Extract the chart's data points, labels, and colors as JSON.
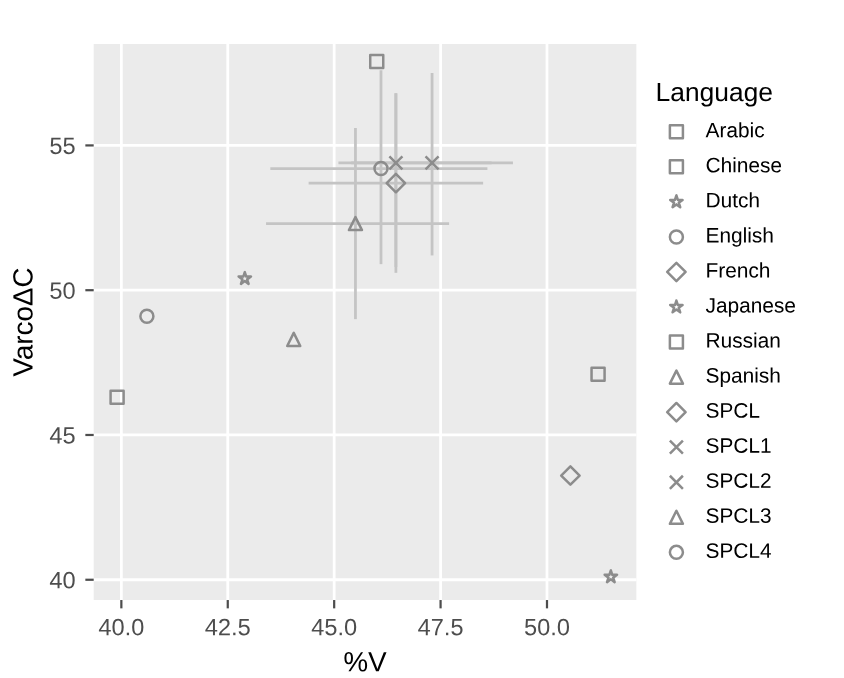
{
  "chart_data": {
    "type": "scatter",
    "xlabel": "%V",
    "ylabel": "VarcoΔC",
    "legend_title": "Language",
    "legend": "right",
    "grid": true,
    "xlim": [
      39.35,
      52.1
    ],
    "ylim": [
      39.3,
      58.5
    ],
    "xticks": [
      {
        "value": 40,
        "label": "40.0"
      },
      {
        "value": 42.5,
        "label": "42.5"
      },
      {
        "value": 45,
        "label": "45.0"
      },
      {
        "value": 47.5,
        "label": "47.5"
      },
      {
        "value": 50,
        "label": "50.0"
      }
    ],
    "yticks": [
      40,
      45,
      50,
      55
    ],
    "series": [
      {
        "name": "Arabic",
        "color": "#8c8c8c",
        "marker": "square",
        "x": [
          46.0
        ],
        "values": [
          57.9
        ]
      },
      {
        "name": "Chinese",
        "color": "#8c8c8c",
        "marker": "square",
        "x": [
          51.2
        ],
        "values": [
          47.1
        ]
      },
      {
        "name": "Dutch",
        "color": "#8c8c8c",
        "marker": "star",
        "x": [
          42.9
        ],
        "values": [
          50.4
        ]
      },
      {
        "name": "English",
        "color": "#8c8c8c",
        "marker": "circle",
        "x": [
          40.6
        ],
        "values": [
          49.1
        ]
      },
      {
        "name": "French",
        "color": "#8c8c8c",
        "marker": "diamond",
        "x": [
          50.55
        ],
        "values": [
          43.6
        ]
      },
      {
        "name": "Japanese",
        "color": "#8c8c8c",
        "marker": "star",
        "x": [
          51.5
        ],
        "values": [
          40.1
        ]
      },
      {
        "name": "Russian",
        "color": "#8c8c8c",
        "marker": "square",
        "x": [
          39.9
        ],
        "values": [
          46.3
        ]
      },
      {
        "name": "Spanish",
        "color": "#8c8c8c",
        "marker": "triangle",
        "x": [
          44.05
        ],
        "values": [
          48.3
        ]
      },
      {
        "name": "SPCL",
        "color": "#8c8c8c",
        "marker": "diamond",
        "x": [
          46.45
        ],
        "values": [
          53.7
        ],
        "errors": [
          [
            50.8,
            56.8
          ]
        ],
        "xerrors": [
          [
            44.4,
            48.5
          ]
        ]
      },
      {
        "name": "SPCL1",
        "color": "#8c8c8c",
        "marker": "cross",
        "x": [
          46.45
        ],
        "values": [
          54.4
        ],
        "errors": [
          [
            50.6,
            56.8
          ]
        ],
        "xerrors": [
          [
            45.1,
            48.7
          ]
        ]
      },
      {
        "name": "SPCL2",
        "color": "#8c8c8c",
        "marker": "cross",
        "x": [
          47.3
        ],
        "values": [
          54.4
        ],
        "errors": [
          [
            51.2,
            57.5
          ]
        ],
        "xerrors": [
          [
            45.4,
            49.2
          ]
        ]
      },
      {
        "name": "SPCL3",
        "color": "#8c8c8c",
        "marker": "triangle",
        "x": [
          45.5
        ],
        "values": [
          52.3
        ],
        "errors": [
          [
            49.0,
            55.6
          ]
        ],
        "xerrors": [
          [
            43.4,
            47.7
          ]
        ]
      },
      {
        "name": "SPCL4",
        "color": "#8c8c8c",
        "marker": "circle",
        "x": [
          46.1
        ],
        "values": [
          54.2
        ],
        "errors": [
          [
            50.9,
            57.6
          ]
        ],
        "xerrors": [
          [
            43.5,
            48.6
          ]
        ]
      }
    ]
  }
}
